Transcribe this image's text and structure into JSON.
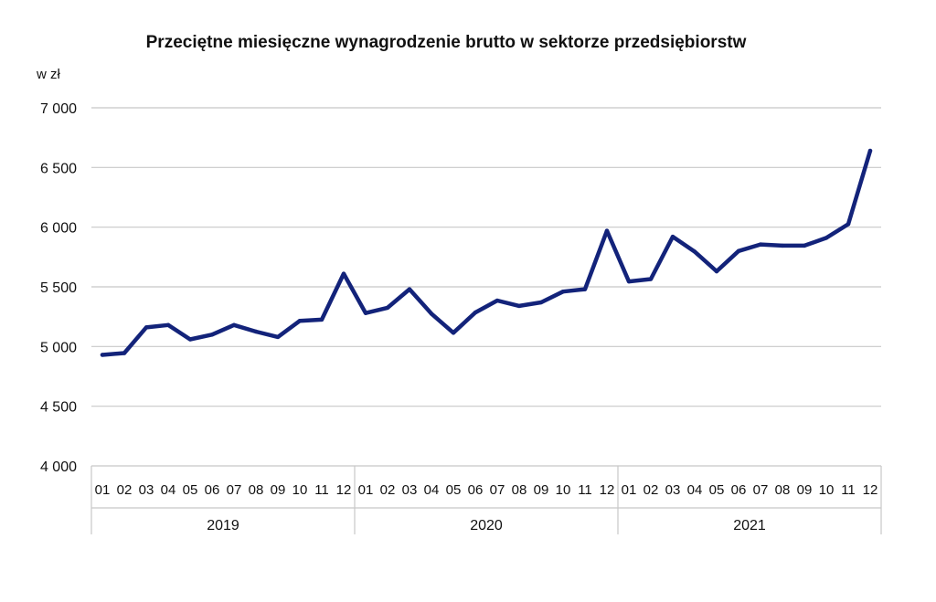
{
  "chart_data": {
    "type": "line",
    "title": "Przeciętne miesięczne wynagrodzenie brutto w sektorze przedsiębiorstw",
    "ylabel": "w zł",
    "xlabel": "",
    "ylim": [
      4000,
      7000
    ],
    "yticks": [
      {
        "value": 4000,
        "label": "4 000"
      },
      {
        "value": 4500,
        "label": "4 500"
      },
      {
        "value": 5000,
        "label": "5 000"
      },
      {
        "value": 5500,
        "label": "5 500"
      },
      {
        "value": 6000,
        "label": "6 000"
      },
      {
        "value": 6500,
        "label": "6 500"
      },
      {
        "value": 7000,
        "label": "7 000"
      }
    ],
    "grid": true,
    "groups": [
      {
        "label": "2019",
        "months": [
          "01",
          "02",
          "03",
          "04",
          "05",
          "06",
          "07",
          "08",
          "09",
          "10",
          "11",
          "12"
        ]
      },
      {
        "label": "2020",
        "months": [
          "01",
          "02",
          "03",
          "04",
          "05",
          "06",
          "07",
          "08",
          "09",
          "10",
          "11",
          "12"
        ]
      },
      {
        "label": "2021",
        "months": [
          "01",
          "02",
          "03",
          "04",
          "05",
          "06",
          "07",
          "08",
          "09",
          "10",
          "11",
          "12"
        ]
      }
    ],
    "series": [
      {
        "color": "#13237a",
        "values": [
          4930,
          4945,
          5160,
          5180,
          5060,
          5100,
          5180,
          5125,
          5080,
          5215,
          5225,
          5610,
          5280,
          5325,
          5480,
          5275,
          5115,
          5285,
          5385,
          5340,
          5370,
          5460,
          5480,
          5970,
          5545,
          5565,
          5920,
          5795,
          5630,
          5800,
          5855,
          5845,
          5845,
          5910,
          6025,
          6640
        ]
      }
    ]
  }
}
